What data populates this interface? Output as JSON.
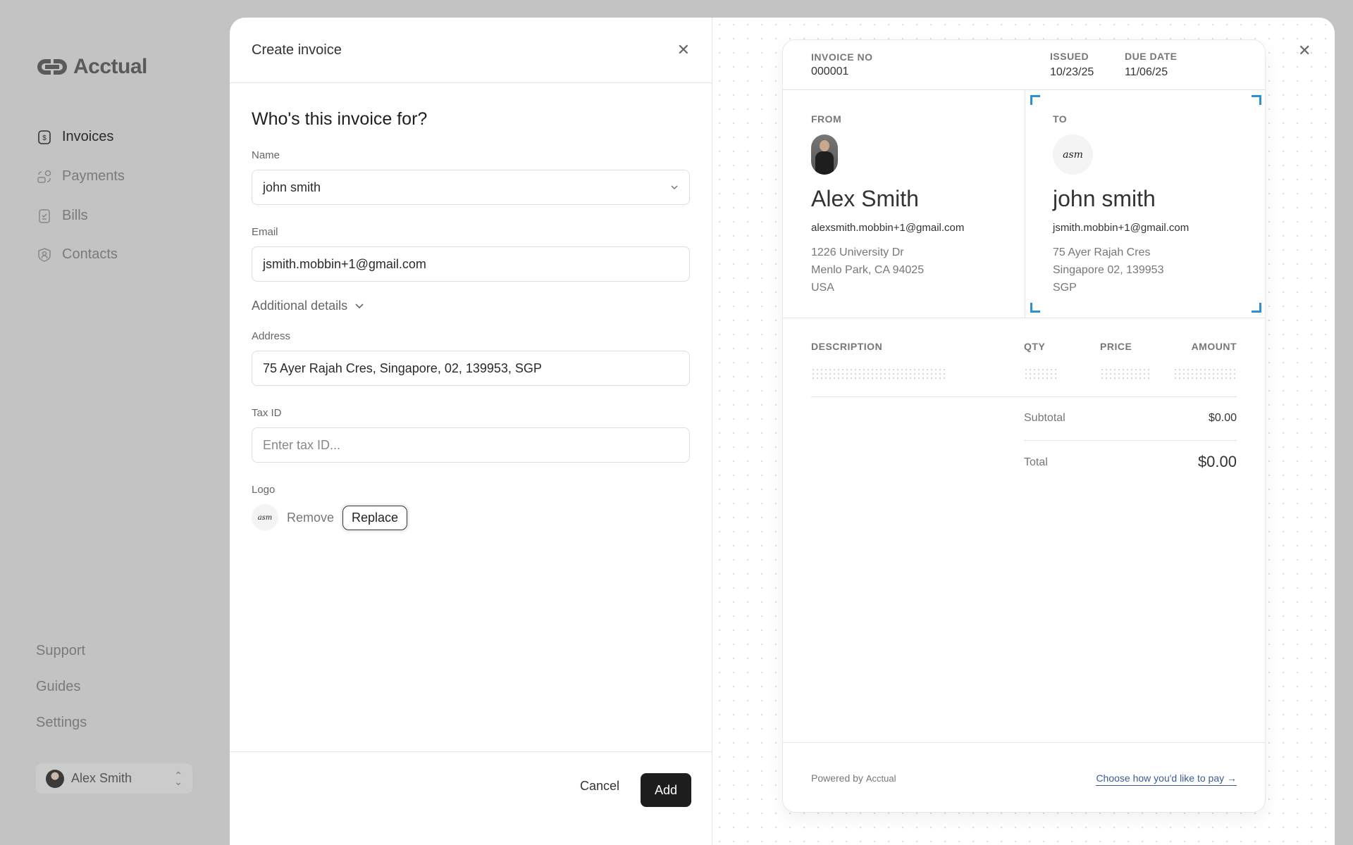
{
  "sidebar": {
    "brand": "Acctual",
    "items": [
      {
        "label": "Invoices",
        "icon": "invoice-dollar-icon",
        "active": true
      },
      {
        "label": "Payments",
        "icon": "payments-icon",
        "active": false
      },
      {
        "label": "Bills",
        "icon": "bill-check-icon",
        "active": false
      },
      {
        "label": "Contacts",
        "icon": "contact-shield-icon",
        "active": false
      }
    ],
    "bottom_links": [
      "Support",
      "Guides",
      "Settings"
    ],
    "user": {
      "name": "Alex Smith"
    }
  },
  "form": {
    "title": "Create invoice",
    "heading": "Who's this invoice for?",
    "name_label": "Name",
    "name_value": "john smith",
    "email_label": "Email",
    "email_value": "jsmith.mobbin+1@gmail.com",
    "additional_details": "Additional details",
    "address_label": "Address",
    "address_value": "75 Ayer Rajah Cres, Singapore, 02, 139953, SGP",
    "taxid_label": "Tax ID",
    "taxid_placeholder": "Enter tax ID...",
    "logo_label": "Logo",
    "logo_text": "asm",
    "remove_label": "Remove",
    "replace_label": "Replace",
    "cancel_label": "Cancel",
    "add_label": "Add"
  },
  "preview": {
    "invoice_no_label": "INVOICE NO",
    "invoice_no": "000001",
    "issued_label": "ISSUED",
    "issued": "10/23/25",
    "due_label": "DUE DATE",
    "due": "11/06/25",
    "from": {
      "label": "FROM",
      "name": "Alex Smith",
      "email": "alexsmith.mobbin+1@gmail.com",
      "address": [
        "1226 University Dr",
        "Menlo Park, CA 94025",
        "USA"
      ]
    },
    "to": {
      "label": "TO",
      "name": "john smith",
      "email": "jsmith.mobbin+1@gmail.com",
      "address": [
        "75 Ayer Rajah Cres",
        "Singapore 02, 139953",
        "SGP"
      ]
    },
    "columns": [
      "DESCRIPTION",
      "QTY",
      "PRICE",
      "AMOUNT"
    ],
    "subtotal_label": "Subtotal",
    "subtotal": "$0.00",
    "total_label": "Total",
    "total": "$0.00",
    "powered_by": "Powered by",
    "powered_brand": "Acctual",
    "pay_link": "Choose how you'd like to pay →",
    "accent_color": "#2d8fd5"
  }
}
